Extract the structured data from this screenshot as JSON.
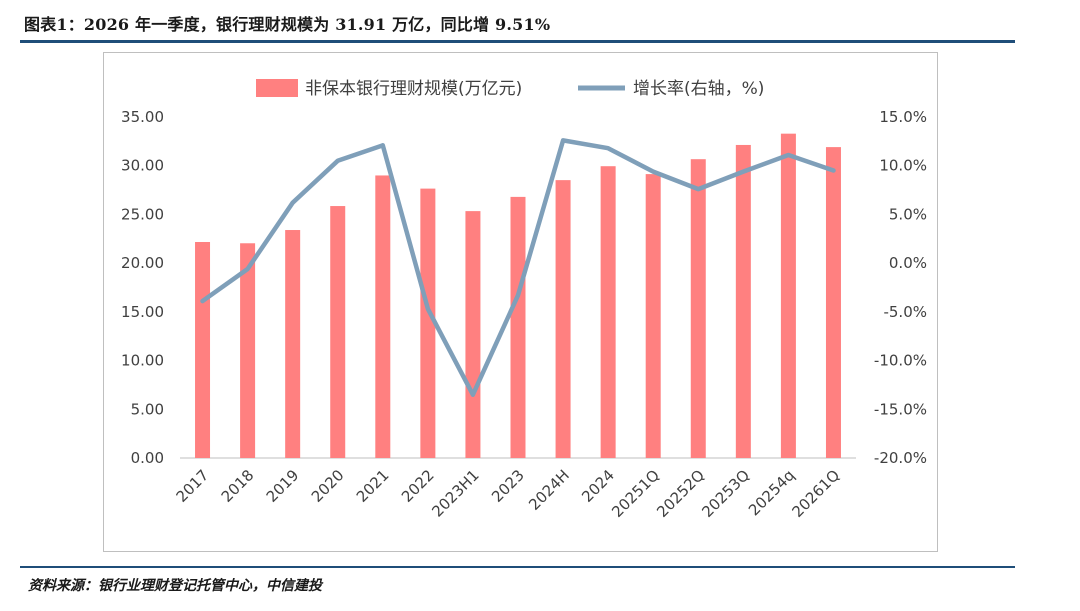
{
  "header": {
    "title": "图表1：2026 年一季度，银行理财规模为 31.91 万亿，同比增 9.51%"
  },
  "footer": {
    "source": "资料来源：银行业理财登记托管中心，中信建投"
  },
  "colors": {
    "bar": "#ff8080",
    "line": "#7f9fb9",
    "rule": "#1f4e79"
  },
  "chart_data": {
    "type": "bar+line",
    "categories": [
      "2017",
      "2018",
      "2019",
      "2020",
      "2021",
      "2022",
      "2023H1",
      "2023",
      "2024H",
      "2024",
      "20251Q",
      "20252Q",
      "20253Q",
      "20254q",
      "20261Q"
    ],
    "series": [
      {
        "name": "非保本银行理财规模(万亿元)",
        "type": "bar",
        "axis": "left",
        "values": [
          22.17,
          22.04,
          23.4,
          25.86,
          29.0,
          27.65,
          25.34,
          26.8,
          28.52,
          29.95,
          29.14,
          30.67,
          32.13,
          33.29,
          31.91
        ]
      },
      {
        "name": "增长率(右轴，%)",
        "type": "line",
        "axis": "right",
        "values": [
          -3.9,
          -0.6,
          6.2,
          10.5,
          12.1,
          -4.7,
          -13.5,
          -3.3,
          12.6,
          11.8,
          9.4,
          7.6,
          9.4,
          11.1,
          9.51
        ]
      }
    ],
    "left_axis": {
      "min": 0,
      "max": 35,
      "ticks": [
        "0.00",
        "5.00",
        "10.00",
        "15.00",
        "20.00",
        "25.00",
        "30.00",
        "35.00"
      ]
    },
    "right_axis": {
      "min": -20,
      "max": 15,
      "ticks": [
        "-20.0%",
        "-15.0%",
        "-10.0%",
        "-5.0%",
        "0.0%",
        "5.0%",
        "10.0%",
        "15.0%"
      ]
    },
    "legend": {
      "position": "top",
      "bar_label": "非保本银行理财规模(万亿元)",
      "line_label": "增长率(右轴，%)"
    },
    "grid": false
  }
}
